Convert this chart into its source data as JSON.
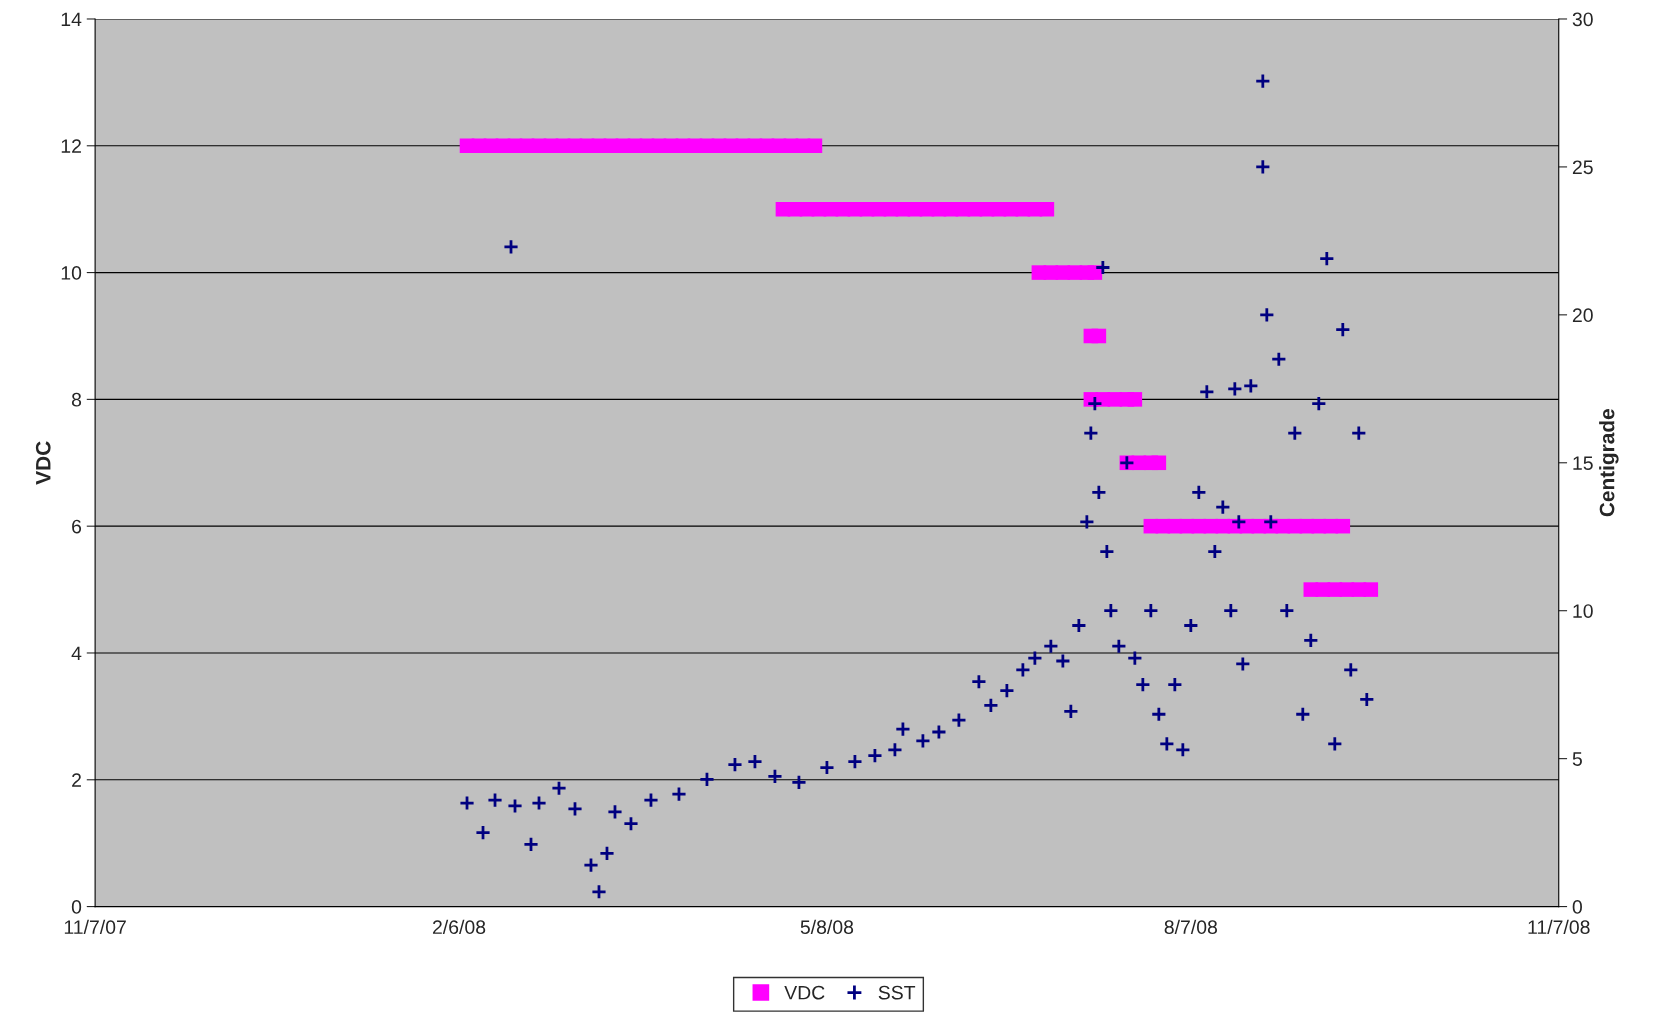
{
  "chart_data": {
    "type": "scatter",
    "ylabel": "VDC",
    "y2label": "Centigrade",
    "xlim": [
      "2007-11-07",
      "2008-11-07"
    ],
    "xticks": [
      {
        "value": "2007-11-07",
        "label": "11/7/07"
      },
      {
        "value": "2008-02-06",
        "label": "2/6/08"
      },
      {
        "value": "2008-05-08",
        "label": "5/8/08"
      },
      {
        "value": "2008-08-07",
        "label": "8/7/08"
      },
      {
        "value": "2008-11-07",
        "label": "11/7/08"
      }
    ],
    "ylim": [
      0,
      14
    ],
    "yticks": [
      0,
      2,
      4,
      6,
      8,
      10,
      12,
      14
    ],
    "y2lim": [
      0,
      30
    ],
    "y2ticks": [
      0,
      5,
      10,
      15,
      20,
      25,
      30
    ],
    "grid": "y",
    "legend": "bottom",
    "series": [
      {
        "name": "VDC",
        "color": "#ff00ff",
        "marker": "square",
        "x": [
          "2008-02-08",
          "2008-02-11",
          "2008-02-14",
          "2008-02-17",
          "2008-02-20",
          "2008-02-23",
          "2008-02-26",
          "2008-02-29",
          "2008-03-03",
          "2008-03-06",
          "2008-03-09",
          "2008-03-12",
          "2008-03-15",
          "2008-03-18",
          "2008-03-21",
          "2008-03-24",
          "2008-03-27",
          "2008-03-30",
          "2008-04-02",
          "2008-04-05",
          "2008-04-08",
          "2008-04-11",
          "2008-04-14",
          "2008-04-17",
          "2008-04-20",
          "2008-04-23",
          "2008-04-26",
          "2008-04-29",
          "2008-05-02",
          "2008-05-05",
          "2008-04-27",
          "2008-04-30",
          "2008-05-03",
          "2008-05-06",
          "2008-05-09",
          "2008-05-12",
          "2008-05-15",
          "2008-05-18",
          "2008-05-21",
          "2008-05-24",
          "2008-05-27",
          "2008-05-30",
          "2008-06-02",
          "2008-06-05",
          "2008-06-08",
          "2008-06-11",
          "2008-06-14",
          "2008-06-17",
          "2008-06-20",
          "2008-06-23",
          "2008-06-26",
          "2008-06-29",
          "2008-07-02",
          "2008-06-30",
          "2008-07-03",
          "2008-07-06",
          "2008-07-09",
          "2008-07-12",
          "2008-07-14",
          "2008-07-13",
          "2008-07-15",
          "2008-07-13",
          "2008-07-16",
          "2008-07-19",
          "2008-07-22",
          "2008-07-24",
          "2008-07-22",
          "2008-07-25",
          "2008-07-28",
          "2008-07-30",
          "2008-07-28",
          "2008-07-31",
          "2008-08-03",
          "2008-08-06",
          "2008-08-09",
          "2008-08-12",
          "2008-08-15",
          "2008-08-18",
          "2008-08-21",
          "2008-08-24",
          "2008-08-27",
          "2008-08-30",
          "2008-09-02",
          "2008-09-05",
          "2008-09-08",
          "2008-09-11",
          "2008-09-14",
          "2008-09-06",
          "2008-09-09",
          "2008-09-12",
          "2008-09-15",
          "2008-09-18",
          "2008-09-21"
        ],
        "values": [
          12,
          12,
          12,
          12,
          12,
          12,
          12,
          12,
          12,
          12,
          12,
          12,
          12,
          12,
          12,
          12,
          12,
          12,
          12,
          12,
          12,
          12,
          12,
          12,
          12,
          12,
          12,
          12,
          12,
          12,
          11,
          11,
          11,
          11,
          11,
          11,
          11,
          11,
          11,
          11,
          11,
          11,
          11,
          11,
          11,
          11,
          11,
          11,
          11,
          11,
          11,
          11,
          11,
          10,
          10,
          10,
          10,
          10,
          10,
          9,
          9,
          8,
          8,
          8,
          8,
          8,
          7,
          7,
          7,
          7,
          6,
          6,
          6,
          6,
          6,
          6,
          6,
          6,
          6,
          6,
          6,
          6,
          6,
          6,
          6,
          6,
          6,
          5,
          5,
          5,
          5,
          5,
          5
        ]
      },
      {
        "name": "SST",
        "color": "#000080",
        "marker": "cross",
        "axis": "y2",
        "x": [
          "2008-02-08",
          "2008-02-12",
          "2008-02-15",
          "2008-02-19",
          "2008-02-20",
          "2008-02-24",
          "2008-02-26",
          "2008-03-02",
          "2008-03-06",
          "2008-03-10",
          "2008-03-12",
          "2008-03-14",
          "2008-03-16",
          "2008-03-20",
          "2008-03-25",
          "2008-04-01",
          "2008-04-08",
          "2008-04-15",
          "2008-04-20",
          "2008-04-25",
          "2008-05-01",
          "2008-05-08",
          "2008-05-15",
          "2008-05-20",
          "2008-05-25",
          "2008-05-27",
          "2008-06-01",
          "2008-06-05",
          "2008-06-10",
          "2008-06-15",
          "2008-06-18",
          "2008-06-22",
          "2008-06-26",
          "2008-06-29",
          "2008-07-03",
          "2008-07-06",
          "2008-07-08",
          "2008-07-10",
          "2008-07-12",
          "2008-07-13",
          "2008-07-14",
          "2008-07-15",
          "2008-07-16",
          "2008-07-17",
          "2008-07-18",
          "2008-07-20",
          "2008-07-22",
          "2008-07-24",
          "2008-07-26",
          "2008-07-28",
          "2008-07-30",
          "2008-08-01",
          "2008-08-03",
          "2008-08-05",
          "2008-08-07",
          "2008-08-09",
          "2008-08-11",
          "2008-08-13",
          "2008-08-15",
          "2008-08-17",
          "2008-08-18",
          "2008-08-19",
          "2008-08-20",
          "2008-08-22",
          "2008-08-25",
          "2008-08-25",
          "2008-08-26",
          "2008-08-27",
          "2008-08-29",
          "2008-08-31",
          "2008-09-02",
          "2008-09-04",
          "2008-09-06",
          "2008-09-08",
          "2008-09-10",
          "2008-09-12",
          "2008-09-14",
          "2008-09-16",
          "2008-09-18",
          "2008-09-20"
        ],
        "values": [
          3.5,
          2.5,
          3.6,
          22.3,
          3.4,
          2.1,
          3.5,
          4.0,
          3.3,
          1.4,
          0.5,
          1.8,
          3.2,
          2.8,
          3.6,
          3.8,
          4.3,
          4.8,
          4.9,
          4.4,
          4.2,
          4.7,
          4.9,
          5.1,
          5.3,
          6.0,
          5.6,
          5.9,
          6.3,
          7.6,
          6.8,
          7.3,
          8.0,
          8.4,
          8.8,
          8.3,
          6.6,
          9.5,
          13,
          16,
          17,
          14,
          21.6,
          12,
          10,
          8.8,
          15,
          8.4,
          7.5,
          10,
          6.5,
          5.5,
          7.5,
          5.3,
          9.5,
          14,
          17.4,
          12,
          13.5,
          10,
          17.5,
          13,
          8.2,
          17.6,
          27.9,
          25,
          20,
          13,
          18.5,
          10,
          16,
          6.5,
          9,
          17,
          21.9,
          5.5,
          19.5,
          8,
          16,
          7
        ]
      }
    ]
  }
}
